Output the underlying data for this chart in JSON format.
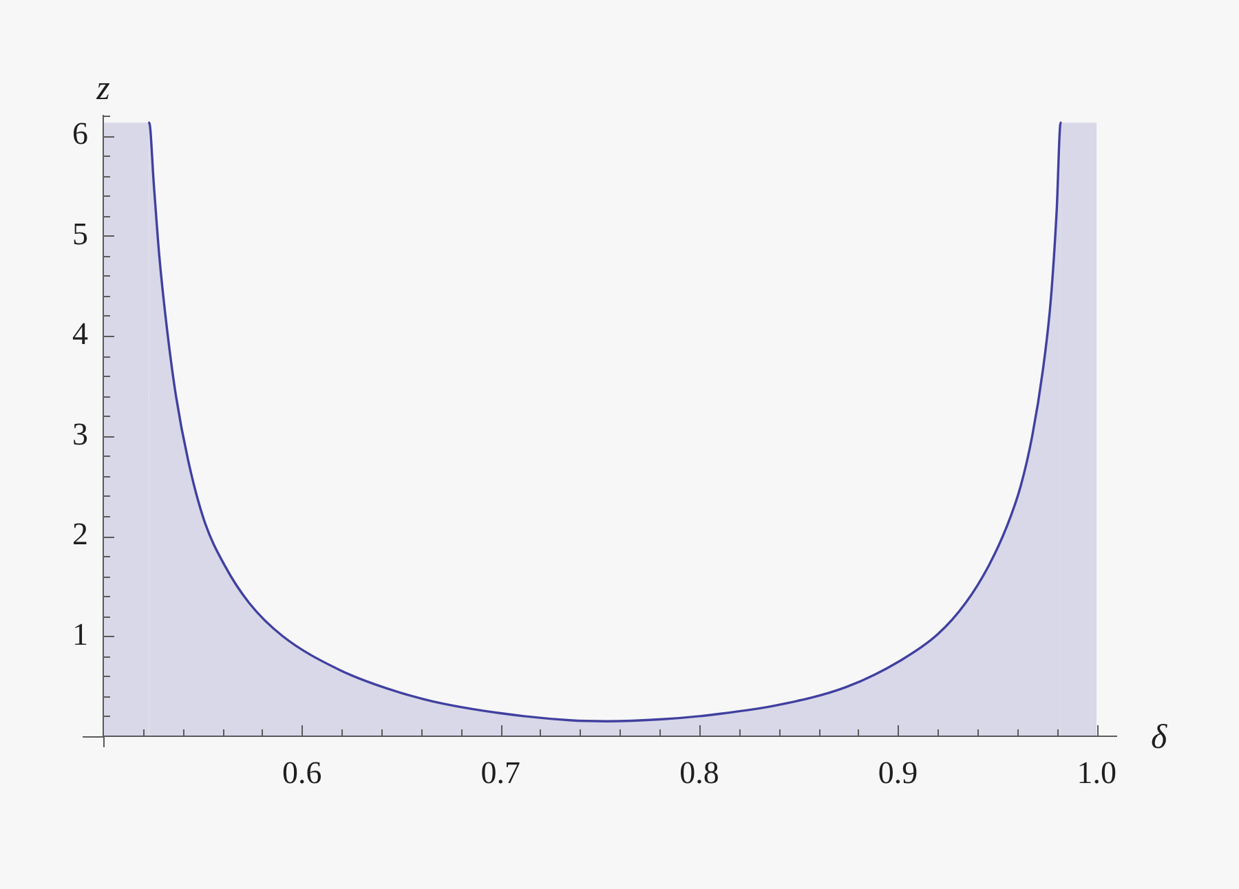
{
  "chart_data": {
    "type": "area",
    "xlabel": "δ",
    "ylabel": "z",
    "color": "#4040a0",
    "x": [
      0.5,
      0.5231,
      0.5255,
      0.5282,
      0.5319,
      0.5366,
      0.5428,
      0.5509,
      0.5613,
      0.5735,
      0.5903,
      0.6192,
      0.6424,
      0.6655,
      0.7,
      0.7349,
      0.7535,
      0.7813,
      0.8044,
      0.8391,
      0.8738,
      0.9016,
      0.9201,
      0.934,
      0.9456,
      0.9549,
      0.9618,
      0.9676,
      0.9729,
      0.9769,
      0.9799,
      0.9819,
      1.0
    ],
    "values": [
      6.13,
      6.13,
      5.5,
      4.8,
      4.1,
      3.4,
      2.75,
      2.15,
      1.7,
      1.33,
      1,
      0.66,
      0.48,
      0.35,
      0.23,
      0.16,
      0.15,
      0.17,
      0.21,
      0.31,
      0.49,
      0.76,
      1.02,
      1.33,
      1.7,
      2.1,
      2.5,
      3,
      3.65,
      4.35,
      5.25,
      6.13,
      6.13
    ],
    "xlim": [
      0.5,
      1.01
    ],
    "ylim": [
      0,
      6.2
    ],
    "xticks": [
      {
        "value": 0.52,
        "label": null
      },
      {
        "value": 0.54,
        "label": null
      },
      {
        "value": 0.56,
        "label": null
      },
      {
        "value": 0.58,
        "label": null
      },
      0.6,
      {
        "value": 0.62,
        "label": null
      },
      {
        "value": 0.64,
        "label": null
      },
      {
        "value": 0.66,
        "label": null
      },
      {
        "value": 0.68,
        "label": null
      },
      0.7,
      {
        "value": 0.72,
        "label": null
      },
      {
        "value": 0.74,
        "label": null
      },
      {
        "value": 0.76,
        "label": null
      },
      {
        "value": 0.78,
        "label": null
      },
      0.8,
      {
        "value": 0.82,
        "label": null
      },
      {
        "value": 0.84,
        "label": null
      },
      {
        "value": 0.86,
        "label": null
      },
      {
        "value": 0.88,
        "label": null
      },
      0.9,
      {
        "value": 0.92,
        "label": null
      },
      {
        "value": 0.94,
        "label": null
      },
      {
        "value": 0.96,
        "label": null
      },
      {
        "value": 0.98,
        "label": null
      },
      {
        "value": 1,
        "label": "1.0"
      }
    ],
    "yticks": [
      {
        "value": 0.2,
        "label": null
      },
      {
        "value": 0.4,
        "label": null
      },
      {
        "value": 0.6,
        "label": null
      },
      {
        "value": 0.8,
        "label": null
      },
      1,
      {
        "value": 1.2,
        "label": null
      },
      {
        "value": 1.4,
        "label": null
      },
      {
        "value": 1.6,
        "label": null
      },
      {
        "value": 1.8,
        "label": null
      },
      2,
      {
        "value": 2.2,
        "label": null
      },
      {
        "value": 2.4,
        "label": null
      },
      {
        "value": 2.6,
        "label": null
      },
      {
        "value": 2.8,
        "label": null
      },
      3,
      {
        "value": 3.2,
        "label": null
      },
      {
        "value": 3.4,
        "label": null
      },
      {
        "value": 3.6,
        "label": null
      },
      {
        "value": 3.8,
        "label": null
      },
      4,
      {
        "value": 4.2,
        "label": null
      },
      {
        "value": 4.4,
        "label": null
      },
      {
        "value": 4.6,
        "label": null
      },
      {
        "value": 4.8,
        "label": null
      },
      5,
      {
        "value": 5.2,
        "label": null
      },
      {
        "value": 5.4,
        "label": null
      },
      {
        "value": 5.6,
        "label": null
      },
      {
        "value": 5.8,
        "label": null
      },
      6,
      {
        "value": 6.2,
        "label": null
      }
    ]
  }
}
